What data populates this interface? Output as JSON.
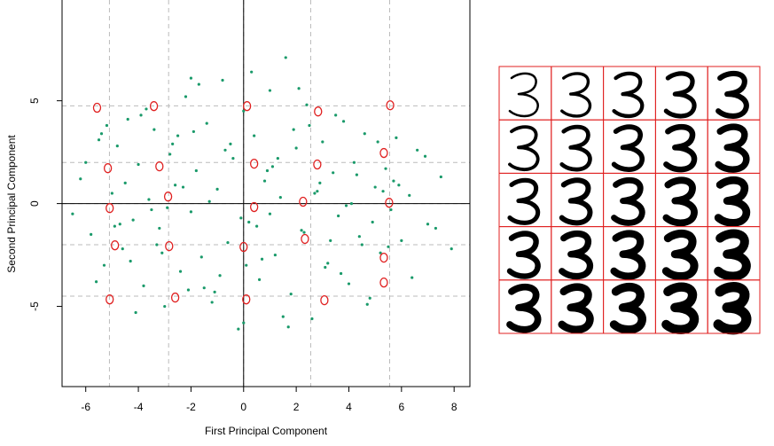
{
  "chart_data": {
    "type": "scatter",
    "x_label": "First Principal Component",
    "y_label": "Second Principal Component",
    "xlim": [
      -6.9,
      8.6
    ],
    "ylim": [
      -8.9,
      9.9
    ],
    "xticks": [
      -6,
      -4,
      -2,
      0,
      2,
      4,
      6,
      8
    ],
    "yticks": [
      -5,
      0,
      5
    ],
    "color": "#1a9a6a",
    "highlight_color": "#e02020",
    "guide_x": [
      -5.1,
      -2.85,
      0,
      2.55,
      5.55
    ],
    "guide_y": [
      4.75,
      2.0,
      0,
      -2.0,
      -4.5
    ],
    "x": [
      -6.2,
      -5.8,
      -5.5,
      -5.3,
      -5.0,
      -4.8,
      -4.6,
      -4.4,
      -4.2,
      -4.0,
      -3.8,
      -3.6,
      -3.4,
      -3.2,
      -3.0,
      -2.8,
      -2.6,
      -2.4,
      -2.2,
      -2.0,
      -1.8,
      -1.6,
      -1.4,
      -1.2,
      -1.0,
      -0.8,
      -0.6,
      -0.4,
      -0.2,
      0.0,
      0.2,
      0.4,
      0.6,
      0.8,
      1.0,
      1.2,
      1.4,
      1.6,
      1.8,
      2.0,
      2.2,
      2.4,
      2.6,
      2.8,
      3.0,
      3.2,
      3.4,
      3.6,
      3.8,
      4.0,
      4.2,
      4.4,
      4.6,
      4.8,
      5.0,
      5.2,
      5.4,
      5.6,
      5.8,
      6.0,
      6.3,
      6.6,
      7.0,
      7.5,
      7.9,
      -6.5,
      -6.0,
      -5.6,
      -5.2,
      -4.9,
      -4.5,
      -4.1,
      -3.7,
      -3.3,
      -2.9,
      -2.5,
      -2.1,
      -1.7,
      -1.3,
      -0.9,
      -0.5,
      -0.1,
      0.3,
      0.7,
      1.1,
      1.5,
      1.9,
      2.3,
      2.7,
      3.1,
      3.5,
      3.9,
      4.3,
      4.7,
      5.1,
      5.5,
      5.9,
      6.4,
      6.9,
      7.3,
      -4.7,
      -3.9,
      -3.1,
      -2.3,
      -1.5,
      -0.7,
      0.1,
      0.9,
      1.7,
      2.5,
      3.3,
      4.1,
      4.9,
      5.7,
      -5.4,
      -4.3,
      -2.7,
      -1.1,
      0.5,
      2.1,
      3.7,
      5.3,
      -3.5,
      -1.9,
      0.0,
      1.3,
      2.9,
      4.5,
      -2.0,
      1.0
    ],
    "y": [
      1.2,
      -1.5,
      3.1,
      -3.0,
      0.5,
      2.8,
      -2.2,
      4.1,
      -0.8,
      1.9,
      -4.0,
      0.2,
      3.6,
      -1.2,
      -5.0,
      2.4,
      0.9,
      -3.3,
      5.2,
      -0.4,
      1.6,
      -2.6,
      3.9,
      -4.8,
      0.7,
      6.0,
      -1.9,
      2.2,
      -6.1,
      4.5,
      -0.9,
      3.3,
      -3.7,
      1.1,
      5.5,
      -2.5,
      0.3,
      7.1,
      -4.4,
      2.7,
      -1.3,
      4.8,
      -5.6,
      0.6,
      3.0,
      -2.9,
      1.5,
      -0.6,
      4.0,
      -3.9,
      2.0,
      -1.6,
      3.4,
      -4.6,
      0.8,
      -2.4,
      1.7,
      -0.3,
      3.2,
      -1.8,
      0.4,
      2.6,
      -1.0,
      1.3,
      -2.2,
      -0.5,
      2.0,
      -3.8,
      3.8,
      -1.1,
      1.0,
      -5.3,
      4.6,
      -2.0,
      -0.2,
      3.3,
      -4.2,
      5.8,
      0.1,
      -3.5,
      2.9,
      -0.7,
      6.4,
      -2.7,
      1.8,
      -5.5,
      3.6,
      -1.4,
      0.5,
      -3.1,
      4.3,
      -0.1,
      1.4,
      -4.9,
      3.0,
      -2.1,
      0.9,
      -3.6,
      2.3,
      -1.2,
      -1.0,
      4.3,
      -2.4,
      0.8,
      -4.1,
      2.6,
      -3.0,
      1.6,
      -6.0,
      3.8,
      -1.8,
      0.0,
      -0.9,
      1.1,
      3.4,
      -2.8,
      2.9,
      -4.3,
      -1.1,
      5.6,
      -3.4,
      0.6,
      -0.3,
      3.5,
      -5.8,
      2.2,
      1.0,
      -2.0,
      6.1,
      -0.5
    ],
    "highlight_x": [
      -5.57,
      -3.41,
      0.13,
      2.83,
      5.57,
      -5.16,
      -3.2,
      0.4,
      2.8,
      5.33,
      -5.09,
      -2.87,
      0.4,
      2.26,
      5.53,
      -4.89,
      -2.83,
      0.0,
      2.33,
      5.33,
      -5.09,
      -2.6,
      0.1,
      3.07,
      5.33
    ],
    "highlight_y": [
      4.66,
      4.74,
      4.74,
      4.48,
      4.78,
      1.72,
      1.81,
      1.94,
      1.9,
      2.46,
      -0.22,
      0.34,
      -0.17,
      0.09,
      0.04,
      -2.03,
      -2.07,
      -2.11,
      -1.72,
      -2.63,
      -4.66,
      -4.57,
      -4.66,
      -4.7,
      -3.84
    ]
  }
}
